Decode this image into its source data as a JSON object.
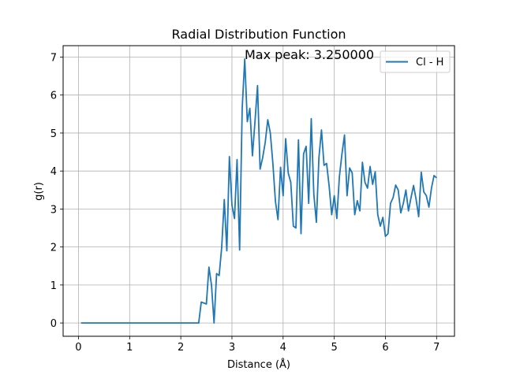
{
  "chart_data": {
    "type": "line",
    "title": "Radial Distribution Function",
    "xlabel": "Distance (Å)",
    "ylabel": "g(r)",
    "xlim": [
      -0.3,
      7.35
    ],
    "ylim": [
      -0.35,
      7.3
    ],
    "xticks": [
      "0",
      "1",
      "2",
      "3",
      "4",
      "5",
      "6",
      "7"
    ],
    "yticks": [
      "0",
      "1",
      "2",
      "3",
      "4",
      "5",
      "6",
      "7"
    ],
    "grid": true,
    "legend_position": "top-right",
    "annotation": "Max peak: 3.250000",
    "series": [
      {
        "name": "Cl - H",
        "color": "#1f77b4",
        "x": [
          0.05,
          0.5,
          1.0,
          1.5,
          2.0,
          2.35,
          2.4,
          2.5,
          2.55,
          2.6,
          2.65,
          2.7,
          2.75,
          2.8,
          2.85,
          2.9,
          2.95,
          3.0,
          3.05,
          3.1,
          3.15,
          3.2,
          3.25,
          3.3,
          3.35,
          3.4,
          3.45,
          3.5,
          3.55,
          3.6,
          3.65,
          3.7,
          3.75,
          3.8,
          3.85,
          3.9,
          3.95,
          4.0,
          4.05,
          4.1,
          4.15,
          4.2,
          4.25,
          4.3,
          4.35,
          4.4,
          4.45,
          4.5,
          4.55,
          4.6,
          4.65,
          4.7,
          4.75,
          4.8,
          4.85,
          4.9,
          4.95,
          5.0,
          5.05,
          5.1,
          5.15,
          5.2,
          5.25,
          5.3,
          5.35,
          5.4,
          5.45,
          5.5,
          5.55,
          5.6,
          5.65,
          5.7,
          5.75,
          5.8,
          5.85,
          5.9,
          5.95,
          6.0,
          6.05,
          6.1,
          6.15,
          6.2,
          6.25,
          6.3,
          6.35,
          6.4,
          6.45,
          6.5,
          6.55,
          6.6,
          6.65,
          6.7,
          6.75,
          6.8,
          6.85,
          6.9,
          6.95,
          7.0
        ],
        "values": [
          0,
          0,
          0,
          0,
          0,
          0,
          0.55,
          0.5,
          1.47,
          1.0,
          0.0,
          1.3,
          1.25,
          2.0,
          3.25,
          1.9,
          4.38,
          3.1,
          2.75,
          4.3,
          1.92,
          5.65,
          6.95,
          5.3,
          5.65,
          4.4,
          5.3,
          6.25,
          4.05,
          4.35,
          4.75,
          5.35,
          5.0,
          4.2,
          3.2,
          2.72,
          4.1,
          3.35,
          4.85,
          3.95,
          3.7,
          2.55,
          2.5,
          4.82,
          2.35,
          4.45,
          4.65,
          3.15,
          5.38,
          3.4,
          2.65,
          4.35,
          5.08,
          4.15,
          4.2,
          3.6,
          2.85,
          3.35,
          2.75,
          3.85,
          4.45,
          4.95,
          3.35,
          4.08,
          3.95,
          2.85,
          3.22,
          2.95,
          4.23,
          3.7,
          3.55,
          4.12,
          3.65,
          3.98,
          2.85,
          2.55,
          2.78,
          2.28,
          2.35,
          3.15,
          3.3,
          3.63,
          3.5,
          2.9,
          3.15,
          3.5,
          2.95,
          3.3,
          3.62,
          3.25,
          2.8,
          3.97,
          3.45,
          3.35,
          3.05,
          3.55,
          3.88,
          3.82
        ]
      }
    ]
  }
}
